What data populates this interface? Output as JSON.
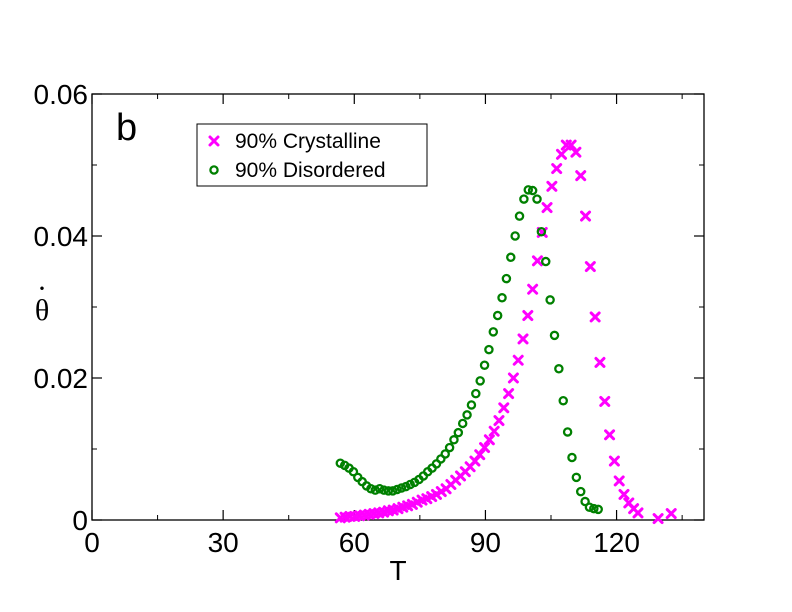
{
  "chart_data": {
    "type": "scatter",
    "panel_label": "b",
    "xlabel": "T",
    "ylabel": "θ",
    "ylabel_accent": "·",
    "xlim": [
      0,
      140
    ],
    "ylim": [
      0,
      0.06
    ],
    "xticks": [
      0,
      30,
      60,
      90,
      120
    ],
    "xtick_labels": [
      "0",
      "30",
      "60",
      "90",
      "120"
    ],
    "yticks": [
      0,
      0.02,
      0.04,
      0.06
    ],
    "ytick_labels": [
      "0",
      "0.02",
      "0.04",
      "0.06"
    ],
    "grid": false,
    "legend_position": "top-left",
    "series": [
      {
        "name": "90% Crystalline",
        "marker": "x",
        "color": "#ff00ff",
        "x": [
          56.8,
          57.9,
          59.0,
          60.1,
          61.2,
          62.3,
          63.4,
          64.5,
          65.6,
          66.7,
          67.8,
          68.9,
          70.0,
          71.1,
          72.2,
          73.3,
          74.4,
          75.5,
          76.6,
          77.7,
          78.8,
          79.9,
          81.0,
          82.1,
          83.2,
          84.3,
          85.4,
          86.5,
          87.6,
          88.7,
          89.8,
          90.9,
          92.0,
          93.1,
          94.2,
          95.3,
          96.4,
          97.5,
          98.6,
          99.7,
          100.8,
          101.9,
          103.0,
          104.1,
          105.2,
          106.3,
          107.4,
          108.5,
          109.6,
          110.7,
          111.8,
          112.9,
          114.0,
          115.1,
          116.2,
          117.3,
          118.4,
          119.5,
          120.6,
          121.7,
          122.8,
          123.9,
          124.9,
          129.5,
          132.5
        ],
        "y": [
          0.0003,
          0.0004,
          0.0005,
          0.0005,
          0.0006,
          0.0007,
          0.0008,
          0.0009,
          0.001,
          0.0011,
          0.0013,
          0.0014,
          0.0016,
          0.0018,
          0.002,
          0.0022,
          0.0025,
          0.0028,
          0.003,
          0.0033,
          0.0036,
          0.004,
          0.0044,
          0.005,
          0.0056,
          0.0062,
          0.0068,
          0.0075,
          0.0083,
          0.0092,
          0.0102,
          0.0113,
          0.0125,
          0.014,
          0.0158,
          0.0178,
          0.02,
          0.0225,
          0.0255,
          0.0288,
          0.0325,
          0.0365,
          0.0405,
          0.044,
          0.047,
          0.0495,
          0.0515,
          0.0528,
          0.0528,
          0.0518,
          0.0485,
          0.0428,
          0.0357,
          0.0286,
          0.0222,
          0.0167,
          0.012,
          0.0083,
          0.0055,
          0.0036,
          0.0024,
          0.0016,
          0.001,
          0.0002,
          0.0009
        ]
      },
      {
        "name": "90% Disordered",
        "marker": "circle",
        "color": "#008000",
        "x": [
          56.8,
          57.8,
          58.8,
          59.8,
          60.8,
          61.8,
          62.8,
          63.8,
          64.8,
          65.8,
          66.8,
          67.8,
          68.8,
          69.8,
          70.8,
          71.8,
          72.8,
          73.8,
          74.8,
          75.8,
          76.8,
          77.8,
          78.8,
          79.8,
          80.8,
          81.8,
          82.8,
          83.8,
          84.8,
          85.8,
          86.8,
          87.8,
          88.8,
          89.8,
          90.8,
          91.8,
          92.8,
          93.8,
          94.8,
          95.8,
          96.8,
          97.8,
          98.8,
          99.8,
          100.8,
          101.8,
          102.8,
          103.8,
          104.8,
          105.8,
          106.8,
          107.8,
          108.8,
          109.8,
          110.8,
          111.8,
          112.8,
          113.8,
          114.8,
          115.8
        ],
        "y": [
          0.008,
          0.0077,
          0.0073,
          0.0068,
          0.006,
          0.0054,
          0.0048,
          0.0044,
          0.0042,
          0.0044,
          0.0042,
          0.0041,
          0.0041,
          0.0043,
          0.0045,
          0.0047,
          0.005,
          0.0053,
          0.0057,
          0.0062,
          0.0068,
          0.0073,
          0.0079,
          0.0086,
          0.0093,
          0.0102,
          0.0113,
          0.0123,
          0.0136,
          0.0148,
          0.0162,
          0.0178,
          0.0196,
          0.0218,
          0.024,
          0.0265,
          0.0288,
          0.0313,
          0.034,
          0.037,
          0.04,
          0.0428,
          0.0452,
          0.0465,
          0.0464,
          0.0452,
          0.0406,
          0.0364,
          0.031,
          0.026,
          0.0213,
          0.0168,
          0.0124,
          0.0088,
          0.006,
          0.004,
          0.0026,
          0.0018,
          0.0016,
          0.0015
        ]
      }
    ]
  }
}
